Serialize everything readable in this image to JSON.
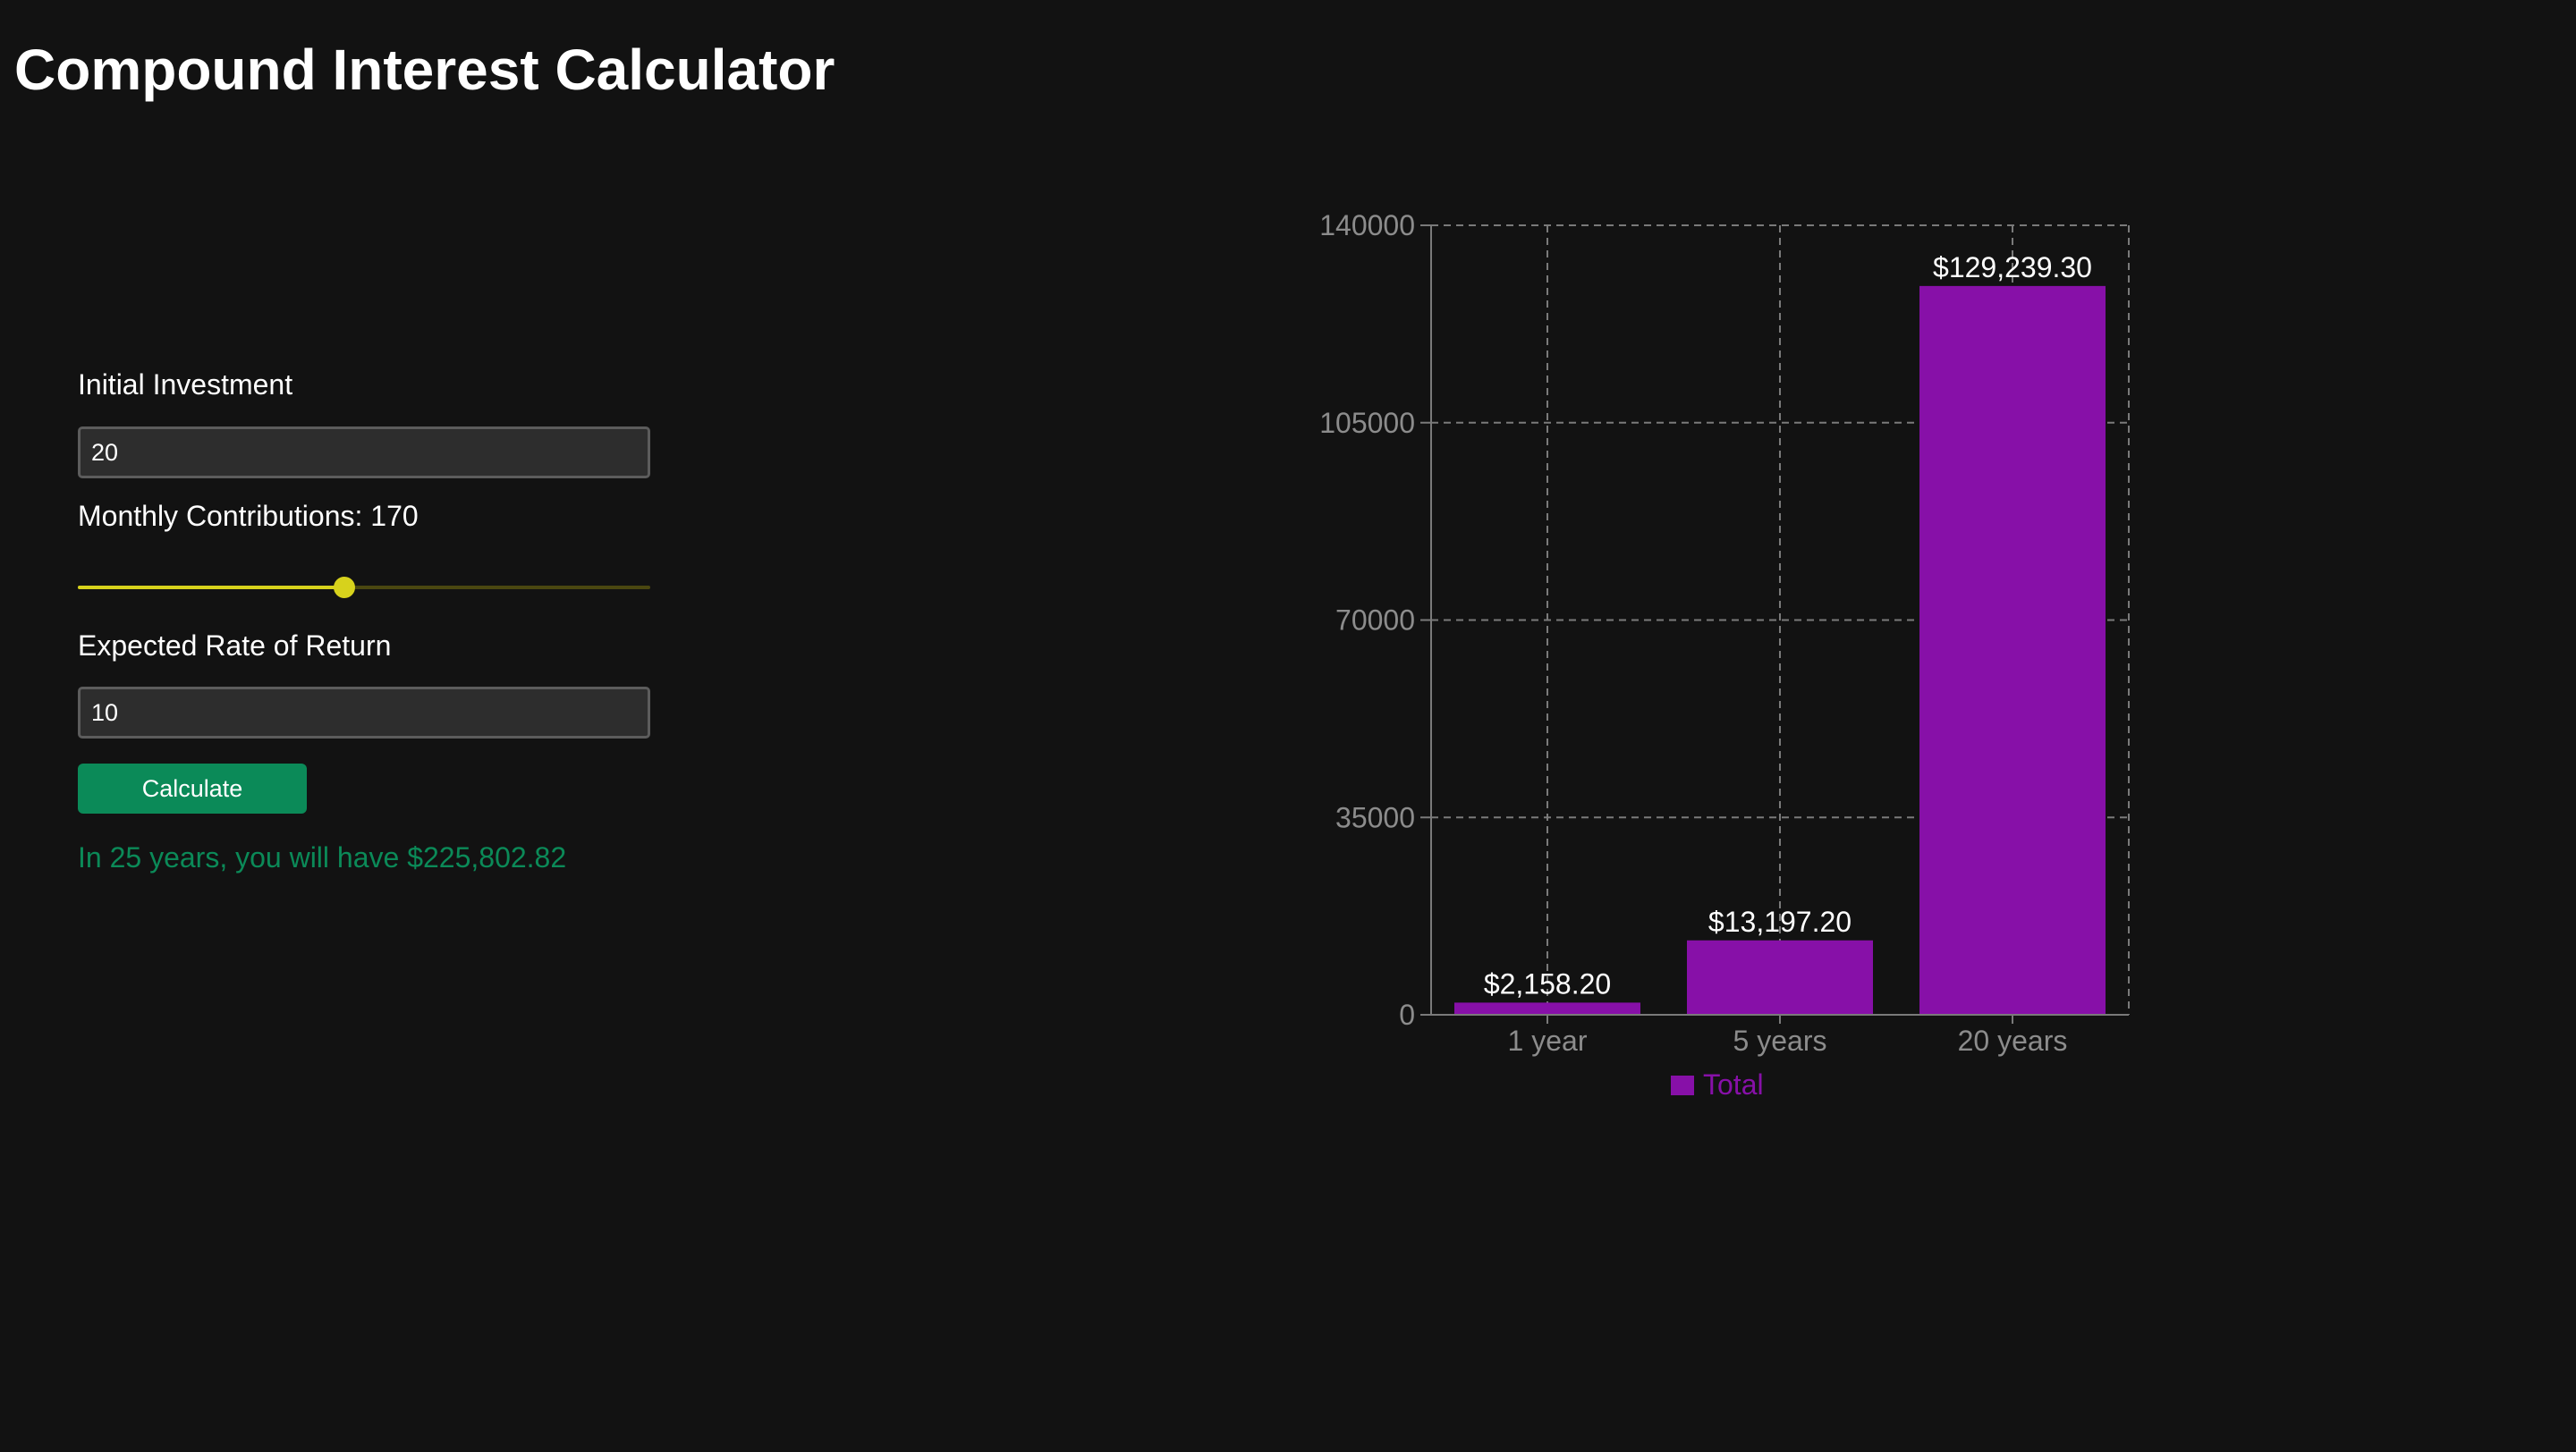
{
  "page": {
    "title": "Compound Interest Calculator"
  },
  "form": {
    "initial_investment": {
      "label": "Initial Investment",
      "value": "20"
    },
    "monthly_contributions": {
      "label": "Monthly Contributions: 170",
      "value": 170,
      "fraction": 0.465
    },
    "rate_of_return": {
      "label": "Expected Rate of Return",
      "value": "10"
    },
    "calculate_label": "Calculate",
    "result_text": "In 25 years, you will have $225,802.82"
  },
  "colors": {
    "background": "#121212",
    "accent_green": "#0b8a58",
    "slider_yellow": "#d7d21c",
    "bar_purple": "#8710a8",
    "axis_text": "#8c8c8c",
    "grid": "#7a7a7a"
  },
  "chart_data": {
    "type": "bar",
    "categories": [
      "1 year",
      "5 years",
      "20 years"
    ],
    "series": [
      {
        "name": "Total",
        "values": [
          2158.2,
          13197.2,
          129239.3
        ],
        "labels": [
          "$2,158.20",
          "$13,197.20",
          "$129,239.30"
        ]
      }
    ],
    "ylim": [
      0,
      140000
    ],
    "yticks": [
      "0",
      "35000",
      "70000",
      "105000",
      "140000"
    ],
    "ytick_values": [
      0,
      35000,
      70000,
      105000,
      140000
    ],
    "grid": true,
    "legend": "bottom"
  }
}
